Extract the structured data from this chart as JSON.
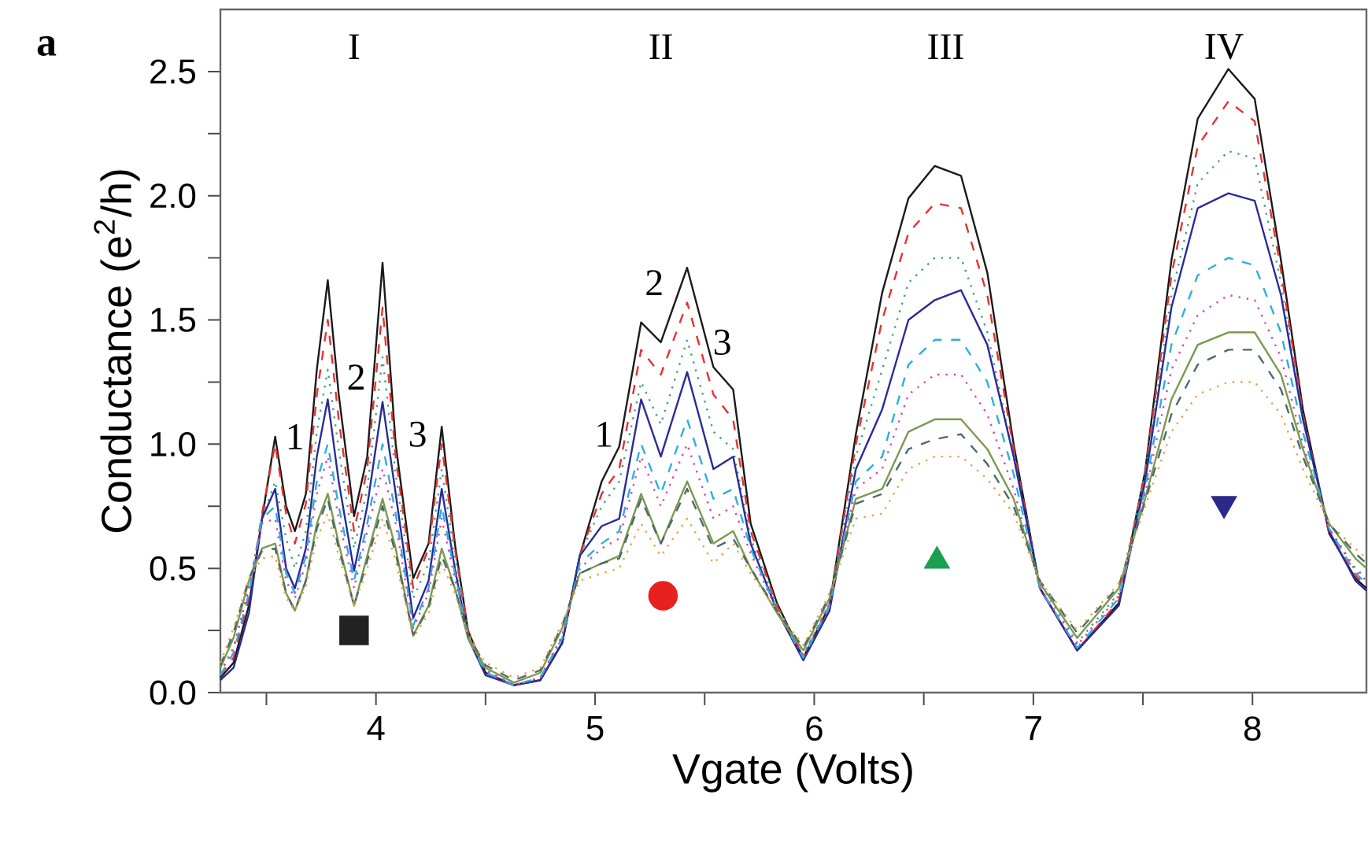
{
  "chart_data": {
    "type": "line",
    "xlabel": "Vgate (Volts)",
    "ylabel": "Conductance (e$^{2}$/h)",
    "xlim": [
      3.29,
      8.52
    ],
    "ylim": [
      0,
      2.75
    ],
    "xticks": [
      {
        "value": 3.5,
        "label": null
      },
      4,
      {
        "value": 4.5,
        "label": null
      },
      5,
      {
        "value": 5.5,
        "label": null
      },
      6,
      {
        "value": 6.5,
        "label": null
      },
      7,
      {
        "value": 7.5,
        "label": null
      },
      8
    ],
    "yticks": [
      {
        "value": 0,
        "label": "0.0"
      },
      {
        "value": 0.25,
        "label": null
      },
      {
        "value": 0.5,
        "label": "0.5"
      },
      {
        "value": 0.75,
        "label": null
      },
      {
        "value": 1,
        "label": "1.0"
      },
      {
        "value": 1.25,
        "label": null
      },
      {
        "value": 1.5,
        "label": "1.5"
      },
      {
        "value": 1.75,
        "label": null
      },
      {
        "value": 2,
        "label": "2.0"
      },
      {
        "value": 2.25,
        "label": null
      },
      {
        "value": 2.5,
        "label": "2.5"
      }
    ],
    "x": [
      3.29,
      3.35,
      3.42,
      3.48,
      3.54,
      3.59,
      3.63,
      3.68,
      3.73,
      3.78,
      3.83,
      3.9,
      3.96,
      4.03,
      4.09,
      4.17,
      4.24,
      4.3,
      4.36,
      4.42,
      4.5,
      4.63,
      4.75,
      4.85,
      4.93,
      5.03,
      5.11,
      5.21,
      5.3,
      5.42,
      5.54,
      5.63,
      5.71,
      5.83,
      5.95,
      6.07,
      6.19,
      6.31,
      6.43,
      6.55,
      6.67,
      6.79,
      6.91,
      7.03,
      7.2,
      7.39,
      7.51,
      7.63,
      7.75,
      7.89,
      8.01,
      8.13,
      8.23,
      8.35,
      8.47,
      8.52
    ],
    "series": [
      {
        "color": "#1a1a1a",
        "line_style": "solid",
        "values": [
          0.06,
          0.12,
          0.35,
          0.7,
          1.03,
          0.75,
          0.65,
          0.8,
          1.3,
          1.66,
          1.2,
          0.71,
          0.95,
          1.73,
          1.0,
          0.46,
          0.6,
          1.07,
          0.6,
          0.25,
          0.08,
          0.03,
          0.05,
          0.2,
          0.55,
          0.85,
          0.99,
          1.49,
          1.41,
          1.71,
          1.31,
          1.22,
          0.68,
          0.36,
          0.14,
          0.35,
          1.04,
          1.61,
          1.99,
          2.12,
          2.08,
          1.69,
          1.0,
          0.42,
          0.17,
          0.36,
          0.89,
          1.74,
          2.31,
          2.51,
          2.39,
          1.74,
          1.14,
          0.64,
          0.46,
          0.42
        ]
      },
      {
        "color": "#e8312f",
        "line_style": "dashed",
        "values": [
          0.07,
          0.14,
          0.38,
          0.72,
          1.0,
          0.72,
          0.6,
          0.76,
          1.2,
          1.5,
          1.1,
          0.65,
          0.9,
          1.55,
          0.95,
          0.42,
          0.58,
          1.0,
          0.58,
          0.25,
          0.08,
          0.03,
          0.05,
          0.2,
          0.55,
          0.8,
          0.9,
          1.38,
          1.28,
          1.57,
          1.2,
          1.1,
          0.65,
          0.35,
          0.14,
          0.35,
          1.0,
          1.5,
          1.85,
          1.97,
          1.95,
          1.6,
          0.98,
          0.42,
          0.17,
          0.37,
          0.88,
          1.68,
          2.2,
          2.38,
          2.3,
          1.7,
          1.12,
          0.64,
          0.47,
          0.43
        ]
      },
      {
        "color": "#3aa57a",
        "line_style": "dotted",
        "values": [
          0.08,
          0.18,
          0.42,
          0.7,
          0.85,
          0.62,
          0.5,
          0.65,
          1.05,
          1.3,
          0.98,
          0.58,
          0.82,
          1.35,
          0.88,
          0.38,
          0.52,
          0.9,
          0.55,
          0.25,
          0.09,
          0.03,
          0.06,
          0.22,
          0.55,
          0.75,
          0.85,
          1.25,
          1.08,
          1.42,
          1.05,
          0.98,
          0.62,
          0.35,
          0.15,
          0.36,
          0.95,
          1.3,
          1.65,
          1.75,
          1.75,
          1.45,
          0.95,
          0.44,
          0.2,
          0.4,
          0.88,
          1.6,
          2.05,
          2.18,
          2.15,
          1.65,
          1.1,
          0.66,
          0.5,
          0.46
        ]
      },
      {
        "color": "#2a2a9a",
        "line_style": "solid",
        "values": [
          0.05,
          0.1,
          0.32,
          0.7,
          0.82,
          0.5,
          0.42,
          0.58,
          0.95,
          1.18,
          0.85,
          0.49,
          0.75,
          1.17,
          0.8,
          0.3,
          0.45,
          0.82,
          0.5,
          0.22,
          0.07,
          0.03,
          0.05,
          0.2,
          0.55,
          0.67,
          0.7,
          1.18,
          0.95,
          1.29,
          0.9,
          0.95,
          0.6,
          0.33,
          0.13,
          0.33,
          0.9,
          1.14,
          1.5,
          1.58,
          1.62,
          1.4,
          0.95,
          0.42,
          0.17,
          0.35,
          0.85,
          1.55,
          1.95,
          2.01,
          1.98,
          1.6,
          1.1,
          0.65,
          0.45,
          0.41
        ]
      },
      {
        "color": "#2ab0e0",
        "line_style": "dashed",
        "values": [
          0.07,
          0.16,
          0.4,
          0.7,
          0.75,
          0.48,
          0.4,
          0.55,
          0.85,
          1.0,
          0.75,
          0.45,
          0.68,
          1.0,
          0.72,
          0.27,
          0.42,
          0.75,
          0.48,
          0.22,
          0.08,
          0.03,
          0.06,
          0.22,
          0.52,
          0.6,
          0.65,
          1.0,
          0.8,
          1.1,
          0.78,
          0.82,
          0.58,
          0.33,
          0.14,
          0.35,
          0.85,
          0.95,
          1.32,
          1.42,
          1.42,
          1.25,
          0.88,
          0.42,
          0.18,
          0.38,
          0.82,
          1.4,
          1.68,
          1.75,
          1.72,
          1.45,
          1.05,
          0.66,
          0.48,
          0.44
        ]
      },
      {
        "color": "#e040b0",
        "line_style": "dotted",
        "values": [
          0.08,
          0.18,
          0.42,
          0.68,
          0.7,
          0.45,
          0.38,
          0.52,
          0.8,
          0.95,
          0.7,
          0.42,
          0.65,
          0.9,
          0.68,
          0.26,
          0.4,
          0.7,
          0.46,
          0.22,
          0.09,
          0.03,
          0.06,
          0.23,
          0.5,
          0.58,
          0.62,
          0.95,
          0.75,
          1.0,
          0.7,
          0.75,
          0.56,
          0.33,
          0.15,
          0.36,
          0.82,
          0.9,
          1.2,
          1.28,
          1.28,
          1.12,
          0.82,
          0.42,
          0.19,
          0.39,
          0.8,
          1.3,
          1.52,
          1.6,
          1.58,
          1.35,
          1.0,
          0.66,
          0.49,
          0.45
        ]
      },
      {
        "color": "#7a9a50",
        "line_style": "solid",
        "values": [
          0.1,
          0.22,
          0.45,
          0.58,
          0.6,
          0.4,
          0.33,
          0.45,
          0.68,
          0.8,
          0.6,
          0.35,
          0.55,
          0.78,
          0.58,
          0.23,
          0.35,
          0.58,
          0.42,
          0.22,
          0.1,
          0.04,
          0.08,
          0.26,
          0.48,
          0.52,
          0.55,
          0.8,
          0.6,
          0.85,
          0.6,
          0.65,
          0.5,
          0.32,
          0.17,
          0.38,
          0.78,
          0.82,
          1.05,
          1.1,
          1.1,
          0.98,
          0.78,
          0.44,
          0.22,
          0.42,
          0.78,
          1.18,
          1.4,
          1.45,
          1.45,
          1.28,
          0.98,
          0.68,
          0.54,
          0.5
        ]
      },
      {
        "color": "#4a6a6a",
        "line_style": "dashed",
        "values": [
          0.11,
          0.24,
          0.46,
          0.57,
          0.58,
          0.4,
          0.33,
          0.45,
          0.66,
          0.78,
          0.58,
          0.35,
          0.53,
          0.75,
          0.56,
          0.23,
          0.34,
          0.55,
          0.42,
          0.23,
          0.11,
          0.05,
          0.09,
          0.27,
          0.48,
          0.52,
          0.54,
          0.78,
          0.6,
          0.82,
          0.58,
          0.62,
          0.5,
          0.33,
          0.18,
          0.39,
          0.76,
          0.8,
          0.98,
          1.02,
          1.04,
          0.92,
          0.75,
          0.45,
          0.24,
          0.43,
          0.77,
          1.12,
          1.32,
          1.38,
          1.38,
          1.22,
          0.95,
          0.68,
          0.56,
          0.52
        ]
      },
      {
        "color": "#f0a040",
        "line_style": "dotted",
        "values": [
          0.12,
          0.26,
          0.46,
          0.54,
          0.55,
          0.38,
          0.33,
          0.43,
          0.62,
          0.72,
          0.55,
          0.35,
          0.5,
          0.7,
          0.53,
          0.22,
          0.32,
          0.52,
          0.4,
          0.23,
          0.12,
          0.06,
          0.1,
          0.28,
          0.45,
          0.48,
          0.5,
          0.68,
          0.55,
          0.7,
          0.52,
          0.6,
          0.48,
          0.33,
          0.19,
          0.4,
          0.7,
          0.72,
          0.9,
          0.95,
          0.95,
          0.86,
          0.72,
          0.45,
          0.25,
          0.44,
          0.75,
          1.05,
          1.2,
          1.25,
          1.25,
          1.12,
          0.9,
          0.68,
          0.58,
          0.54
        ]
      },
      {
        "type": "scatter",
        "marker": "square",
        "color": "#222222",
        "x": [
          3.9
        ],
        "values": [
          0.25
        ]
      },
      {
        "type": "scatter",
        "marker": "circle",
        "color": "#e82020",
        "x": [
          5.31
        ],
        "values": [
          0.39
        ]
      },
      {
        "type": "scatter",
        "marker": "triangle",
        "color": "#1aa050",
        "x": [
          6.56
        ],
        "values": [
          0.53
        ]
      },
      {
        "type": "scatter",
        "marker": "triangle-down",
        "color": "#2a2a8a",
        "x": [
          7.87
        ],
        "values": [
          0.76
        ]
      }
    ],
    "annotations": [
      "a",
      "I",
      "II",
      "III",
      "IV",
      "1",
      "2",
      "3",
      "1",
      "2",
      "3"
    ]
  }
}
